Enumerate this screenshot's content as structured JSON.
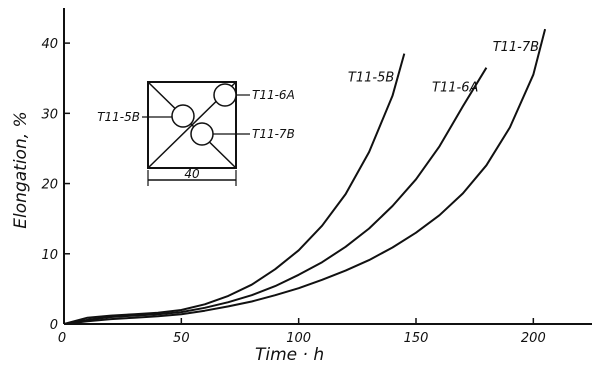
{
  "chart_data": {
    "type": "line",
    "title": "",
    "xlabel": "Time · h",
    "ylabel": "Elongation, %",
    "xlim": [
      0,
      225
    ],
    "ylim": [
      0,
      45
    ],
    "x_ticks": [
      "0",
      "50",
      "100",
      "150",
      "200"
    ],
    "y_ticks": [
      "0",
      "10",
      "20",
      "30",
      "40"
    ],
    "grid": false,
    "series": [
      {
        "name": "T11-5B",
        "x": [
          0,
          10,
          20,
          30,
          40,
          50,
          60,
          70,
          80,
          90,
          100,
          110,
          120,
          130,
          140,
          145
        ],
        "y": [
          0,
          0.9,
          1.2,
          1.4,
          1.6,
          2.0,
          2.8,
          4.0,
          5.6,
          7.8,
          10.5,
          14.0,
          18.5,
          24.5,
          32.5,
          38.5
        ]
      },
      {
        "name": "T11-6A",
        "x": [
          0,
          10,
          20,
          30,
          40,
          50,
          60,
          70,
          80,
          90,
          100,
          110,
          120,
          130,
          140,
          150,
          160,
          170,
          180
        ],
        "y": [
          0,
          0.6,
          1.0,
          1.2,
          1.4,
          1.7,
          2.3,
          3.1,
          4.1,
          5.4,
          7.0,
          8.8,
          11.0,
          13.6,
          16.8,
          20.6,
          25.3,
          31.0,
          36.5
        ]
      },
      {
        "name": "T11-7B",
        "x": [
          0,
          10,
          20,
          30,
          40,
          50,
          60,
          70,
          80,
          90,
          100,
          110,
          120,
          130,
          140,
          150,
          160,
          170,
          180,
          190,
          200,
          205
        ],
        "y": [
          0,
          0.4,
          0.7,
          0.9,
          1.1,
          1.4,
          1.9,
          2.5,
          3.2,
          4.1,
          5.1,
          6.3,
          7.6,
          9.1,
          10.9,
          13.0,
          15.5,
          18.6,
          22.6,
          28.0,
          35.5,
          42.0
        ]
      }
    ],
    "inset": {
      "dimension_label": "40",
      "specimen_labels": [
        "T11-5B",
        "T11-6A",
        "T11-7B"
      ]
    }
  }
}
